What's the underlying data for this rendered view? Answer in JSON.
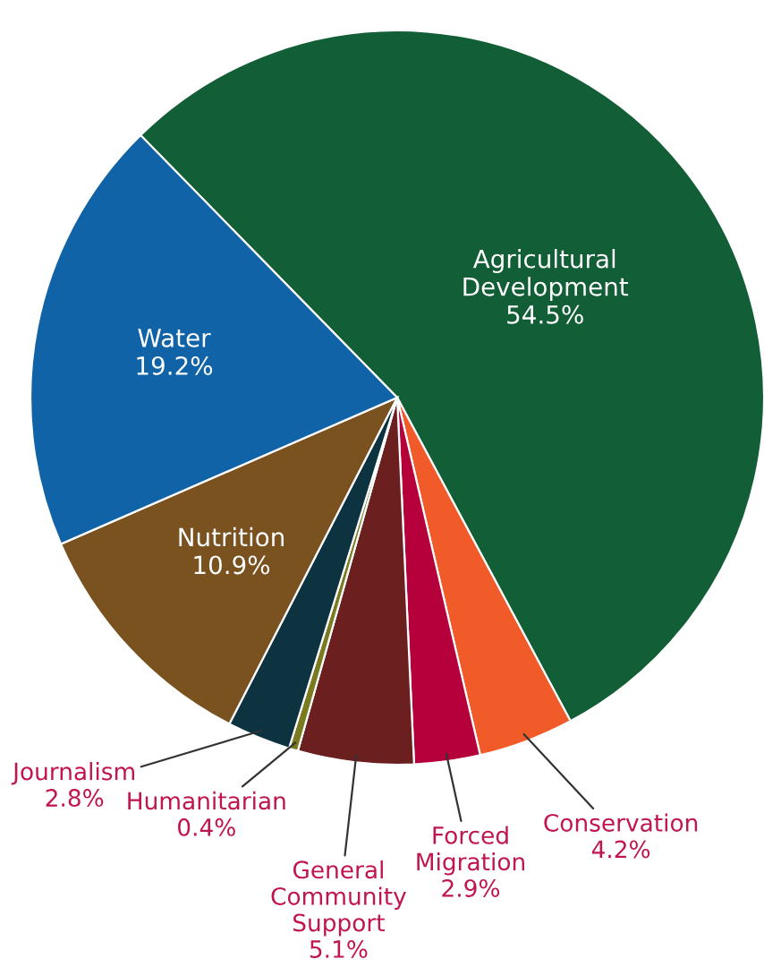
{
  "chart_data": {
    "type": "pie",
    "categories": [
      "Agricultural\nDevelopment",
      "Conservation",
      "Forced\nMigration",
      "General\nCommunity\nSupport",
      "Humanitarian",
      "Journalism",
      "Nutrition",
      "Water"
    ],
    "values": [
      54.5,
      4.2,
      2.9,
      5.1,
      0.4,
      2.8,
      10.9,
      19.2
    ],
    "value_labels": [
      "54.5%",
      "4.2%",
      "2.9%",
      "5.1%",
      "0.4%",
      "2.8%",
      "10.9%",
      "19.2%"
    ],
    "colors": [
      "#125e37",
      "#f15a29",
      "#b5003c",
      "#6b1f1f",
      "#7a7a20",
      "#0d3340",
      "#7a5220",
      "#0f63a6"
    ],
    "legend": false
  }
}
